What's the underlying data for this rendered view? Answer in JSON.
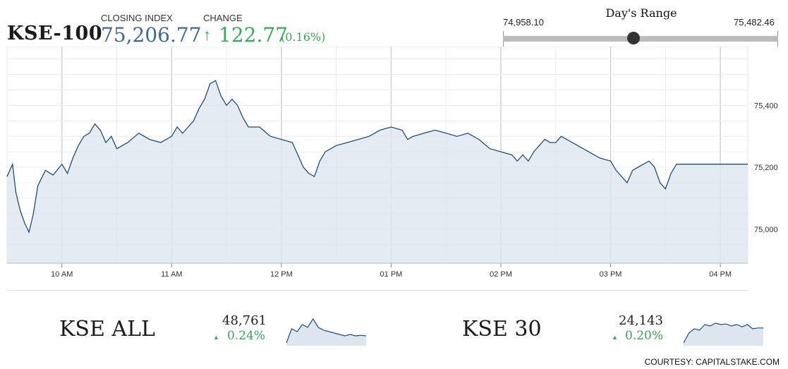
{
  "header": {
    "ticker": "KSE-100",
    "closing_label": "CLOSING INDEX",
    "closing_value": "75,206.77",
    "change_label": "CHANGE",
    "change_value": "122.77",
    "change_pct": "(0.16%)",
    "up_color": "#2eae4f",
    "closing_color": "#3a6a9a"
  },
  "days_range": {
    "title": "Day's Range",
    "low_label": "74,958.10",
    "high_label": "75,482.46",
    "low": 74958.1,
    "high": 75482.46,
    "current": 75206.77
  },
  "sub_indices": [
    {
      "name": "KSE ALL",
      "value": "48,761",
      "change_pct": "0.24%",
      "arrow_icon": "triangle-up-icon"
    },
    {
      "name": "KSE 30",
      "value": "24,143",
      "change_pct": "0.20%",
      "arrow_icon": "triangle-up-icon"
    }
  ],
  "courtesy": "COURTESY: CAPITALSTAKE.COM",
  "chart_data": {
    "type": "area",
    "series": [
      {
        "values": [
          [
            9.5,
            75170
          ],
          [
            9.55,
            75210
          ],
          [
            9.58,
            75120
          ],
          [
            9.62,
            75060
          ],
          [
            9.66,
            75020
          ],
          [
            9.7,
            74990
          ],
          [
            9.74,
            75050
          ],
          [
            9.78,
            75140
          ],
          [
            9.85,
            75190
          ],
          [
            9.92,
            75175
          ],
          [
            10.0,
            75210
          ],
          [
            10.05,
            75180
          ],
          [
            10.1,
            75230
          ],
          [
            10.15,
            75270
          ],
          [
            10.2,
            75300
          ],
          [
            10.25,
            75310
          ],
          [
            10.3,
            75340
          ],
          [
            10.35,
            75320
          ],
          [
            10.4,
            75280
          ],
          [
            10.45,
            75300
          ],
          [
            10.5,
            75260
          ],
          [
            10.6,
            75280
          ],
          [
            10.7,
            75310
          ],
          [
            10.8,
            75290
          ],
          [
            10.9,
            75280
          ],
          [
            11.0,
            75300
          ],
          [
            11.05,
            75330
          ],
          [
            11.1,
            75310
          ],
          [
            11.15,
            75330
          ],
          [
            11.2,
            75350
          ],
          [
            11.25,
            75390
          ],
          [
            11.3,
            75420
          ],
          [
            11.35,
            75470
          ],
          [
            11.4,
            75480
          ],
          [
            11.45,
            75430
          ],
          [
            11.5,
            75400
          ],
          [
            11.55,
            75420
          ],
          [
            11.6,
            75400
          ],
          [
            11.65,
            75360
          ],
          [
            11.7,
            75330
          ],
          [
            11.8,
            75330
          ],
          [
            11.9,
            75300
          ],
          [
            12.0,
            75290
          ],
          [
            12.1,
            75280
          ],
          [
            12.15,
            75240
          ],
          [
            12.2,
            75200
          ],
          [
            12.25,
            75180
          ],
          [
            12.3,
            75170
          ],
          [
            12.35,
            75220
          ],
          [
            12.4,
            75250
          ],
          [
            12.5,
            75270
          ],
          [
            12.6,
            75280
          ],
          [
            12.7,
            75290
          ],
          [
            12.8,
            75300
          ],
          [
            12.9,
            75320
          ],
          [
            13.0,
            75330
          ],
          [
            13.1,
            75320
          ],
          [
            13.15,
            75290
          ],
          [
            13.2,
            75300
          ],
          [
            13.3,
            75310
          ],
          [
            13.4,
            75320
          ],
          [
            13.5,
            75310
          ],
          [
            13.6,
            75300
          ],
          [
            13.7,
            75310
          ],
          [
            13.8,
            75290
          ],
          [
            13.9,
            75260
          ],
          [
            14.0,
            75250
          ],
          [
            14.1,
            75240
          ],
          [
            14.15,
            75220
          ],
          [
            14.2,
            75240
          ],
          [
            14.25,
            75220
          ],
          [
            14.3,
            75250
          ],
          [
            14.35,
            75270
          ],
          [
            14.4,
            75290
          ],
          [
            14.45,
            75280
          ],
          [
            14.5,
            75280
          ],
          [
            14.55,
            75300
          ],
          [
            14.6,
            75290
          ],
          [
            14.7,
            75270
          ],
          [
            14.8,
            75250
          ],
          [
            14.9,
            75230
          ],
          [
            15.0,
            75220
          ],
          [
            15.05,
            75190
          ],
          [
            15.1,
            75170
          ],
          [
            15.15,
            75150
          ],
          [
            15.2,
            75190
          ],
          [
            15.25,
            75200
          ],
          [
            15.3,
            75210
          ],
          [
            15.35,
            75220
          ],
          [
            15.4,
            75200
          ],
          [
            15.45,
            75150
          ],
          [
            15.5,
            75130
          ],
          [
            15.55,
            75180
          ],
          [
            15.6,
            75210
          ],
          [
            16.2,
            75210
          ],
          [
            16.25,
            75210
          ]
        ]
      }
    ],
    "x_ticks": [
      10,
      11,
      12,
      13,
      14,
      15,
      16
    ],
    "x_tick_labels": [
      "10 AM",
      "11 AM",
      "12 PM",
      "01 PM",
      "02 PM",
      "03 PM",
      "04 PM"
    ],
    "y_ticks": [
      75000,
      75200,
      75400
    ],
    "y_tick_labels": [
      "75,000",
      "75,200",
      "75,400"
    ],
    "xlim": [
      9.5,
      16.25
    ],
    "ylim": [
      74890,
      75590
    ],
    "line_color": "#1f4e79",
    "fill_color": "#dde6ef",
    "grid": true
  },
  "sparklines": [
    {
      "type": "area",
      "values": [
        0.05,
        0.55,
        0.45,
        0.7,
        0.6,
        0.9,
        0.6,
        0.5,
        0.45,
        0.4,
        0.35,
        0.3,
        0.35,
        0.3,
        0.32,
        0.3
      ]
    },
    {
      "type": "area",
      "values": [
        0.05,
        0.4,
        0.55,
        0.5,
        0.7,
        0.65,
        0.75,
        0.7,
        0.72,
        0.65,
        0.7,
        0.62,
        0.7,
        0.55,
        0.58,
        0.58
      ]
    }
  ]
}
